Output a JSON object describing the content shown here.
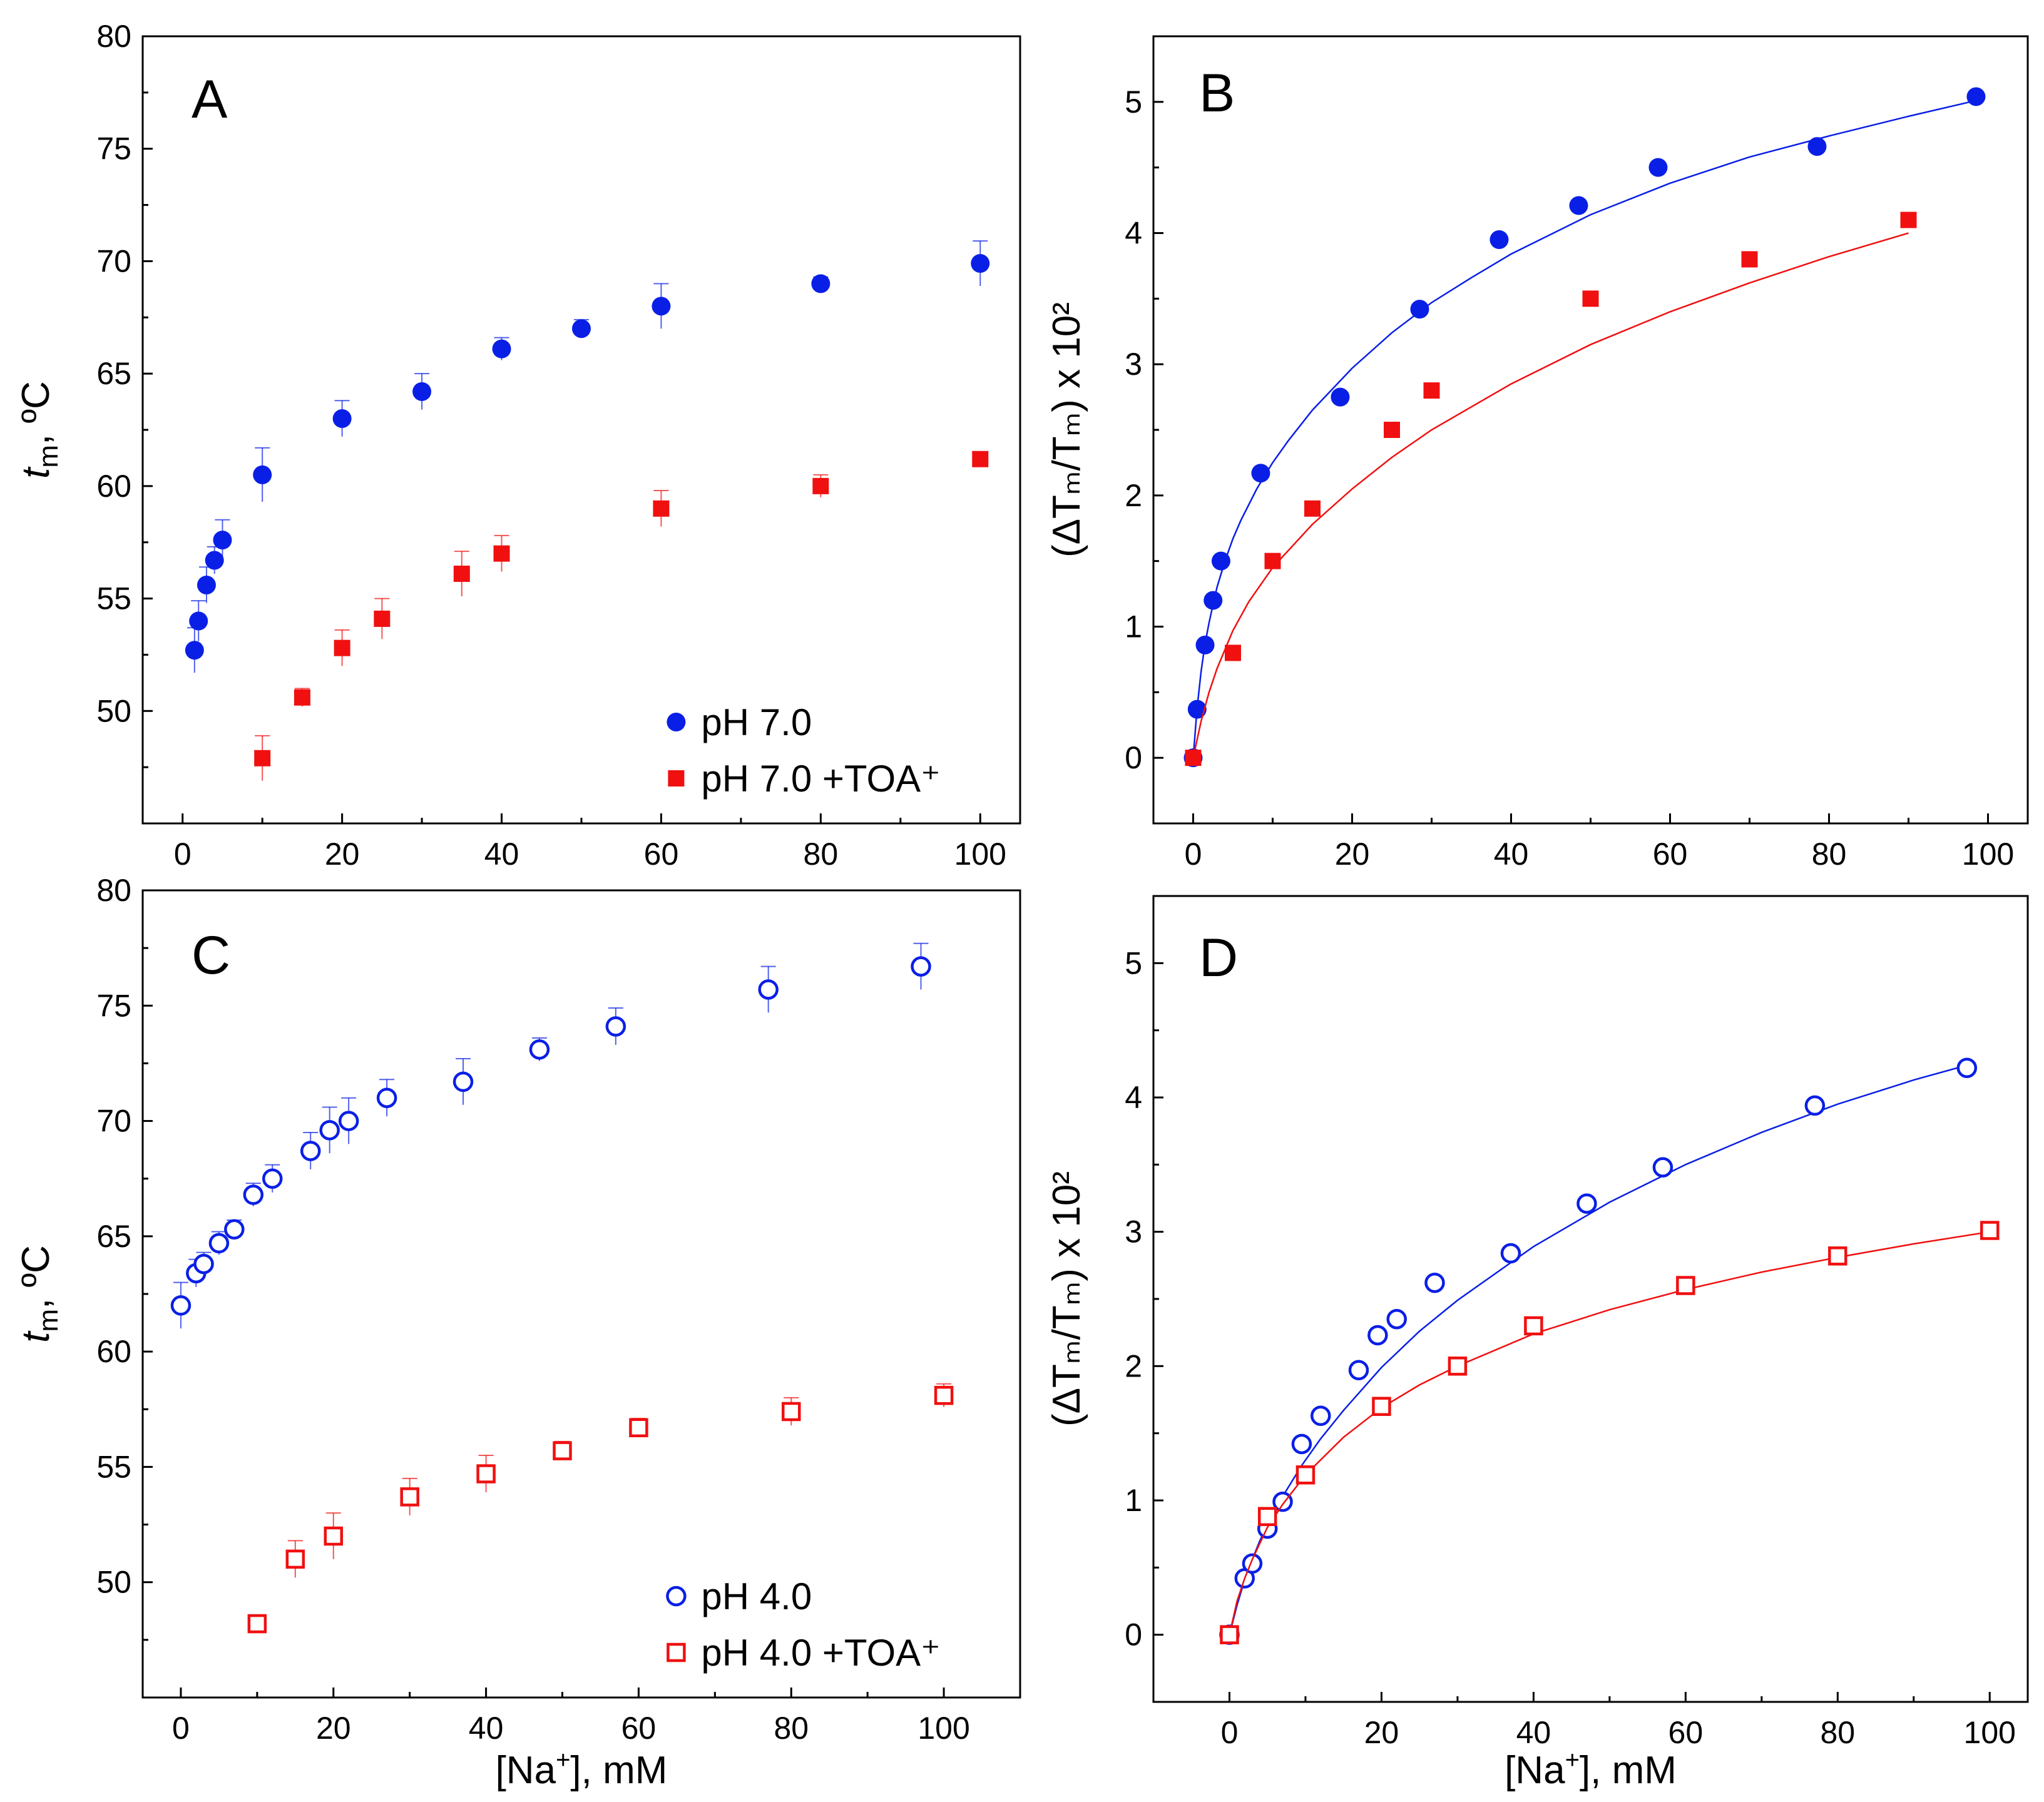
{
  "chart_data": [
    {
      "panel": "A",
      "type": "scatter",
      "xlim": [
        -5,
        105
      ],
      "ylim": [
        45,
        80
      ],
      "xticks": [
        0,
        20,
        40,
        60,
        80,
        100
      ],
      "yticks": [
        50,
        55,
        60,
        65,
        70,
        75,
        80
      ],
      "xlabel": "",
      "ylabel_main": "t",
      "ylabel_sub": "m",
      "ylabel_rest": ", ºC",
      "legend": "bottom-right",
      "series": [
        {
          "name": "pH 7.0",
          "marker": "filled-circle",
          "color": "#0a1fe6",
          "x": [
            1.5,
            2,
            3,
            4,
            5,
            10,
            20,
            30,
            40,
            50,
            60,
            80,
            100
          ],
          "y": [
            52.7,
            54.0,
            55.6,
            56.7,
            57.6,
            60.5,
            63.0,
            64.2,
            66.1,
            67.0,
            68.0,
            69.0,
            69.9
          ],
          "err": [
            1.0,
            0.9,
            0.8,
            0.6,
            0.9,
            1.2,
            0.8,
            0.8,
            0.5,
            0.4,
            1.0,
            0.3,
            1.0
          ]
        },
        {
          "name": "pH 7.0 +TOA⁺",
          "marker": "filled-square",
          "color": "#f01010",
          "x": [
            10,
            15,
            20,
            25,
            35,
            40,
            60,
            80,
            100
          ],
          "y": [
            47.9,
            50.6,
            52.8,
            54.1,
            56.1,
            57.0,
            59.0,
            60.0,
            61.2
          ],
          "err": [
            1.0,
            0.4,
            0.8,
            0.9,
            1.0,
            0.8,
            0.8,
            0.5,
            0.3
          ]
        }
      ]
    },
    {
      "panel": "B",
      "type": "scatter",
      "xlim": [
        -5,
        105
      ],
      "ylim": [
        -0.5,
        5.5
      ],
      "xticks": [
        0,
        20,
        40,
        60,
        80,
        100
      ],
      "yticks": [
        0,
        1,
        2,
        3,
        4,
        5
      ],
      "xlabel": "",
      "ylabel": "(ΔTₘ/Tₘ) x 10²",
      "series": [
        {
          "name": "pH 7.0",
          "marker": "filled-circle",
          "color": "#0a1fe6",
          "x": [
            0,
            0.5,
            1.5,
            2.5,
            3.5,
            8.5,
            18.5,
            28.5,
            38.5,
            48.5,
            58.5,
            78.5,
            98.5
          ],
          "y": [
            0.0,
            0.37,
            0.86,
            1.2,
            1.5,
            2.17,
            2.75,
            3.42,
            3.95,
            4.21,
            4.5,
            4.66,
            5.04
          ],
          "fit_x": [
            0,
            0.5,
            1,
            1.5,
            2,
            2.5,
            3,
            4,
            5,
            6,
            8,
            10,
            12,
            15,
            20,
            25,
            30,
            35,
            40,
            50,
            60,
            70,
            80,
            90,
            98.5
          ],
          "fit_y": [
            0,
            0.38,
            0.66,
            0.87,
            1.03,
            1.17,
            1.3,
            1.5,
            1.67,
            1.81,
            2.05,
            2.25,
            2.42,
            2.65,
            2.97,
            3.24,
            3.47,
            3.66,
            3.84,
            4.14,
            4.38,
            4.58,
            4.74,
            4.89,
            5.01
          ]
        },
        {
          "name": "pH 7.0 +TOA⁺",
          "marker": "filled-square",
          "color": "#f01010",
          "x": [
            0,
            5,
            10,
            15,
            25,
            30,
            50,
            70,
            90
          ],
          "y": [
            0.0,
            0.8,
            1.5,
            1.9,
            2.5,
            2.8,
            3.5,
            3.8,
            4.1
          ],
          "fit_x": [
            0,
            1,
            2,
            3,
            5,
            7,
            10,
            15,
            20,
            25,
            30,
            40,
            50,
            60,
            70,
            80,
            90
          ],
          "fit_y": [
            0,
            0.28,
            0.5,
            0.68,
            0.97,
            1.19,
            1.45,
            1.78,
            2.05,
            2.29,
            2.5,
            2.85,
            3.15,
            3.4,
            3.62,
            3.82,
            4.0
          ]
        }
      ]
    },
    {
      "panel": "C",
      "type": "scatter",
      "xlim": [
        -5,
        110
      ],
      "ylim": [
        45,
        80
      ],
      "xticks": [
        0,
        20,
        40,
        60,
        80,
        100
      ],
      "yticks": [
        50,
        55,
        60,
        65,
        70,
        75,
        80
      ],
      "xlabel_pre": "[Na",
      "xlabel_sup": "+",
      "xlabel_post": "], mM",
      "ylabel_main": "t",
      "ylabel_sub": "m",
      "ylabel_rest": ", ºC",
      "legend": "bottom-right",
      "series": [
        {
          "name": "pH 4.0",
          "marker": "open-circle",
          "color": "#0a1fe6",
          "x": [
            0,
            2,
            3,
            5,
            7,
            9.5,
            12,
            17,
            19.5,
            22,
            27,
            37,
            47,
            57,
            77,
            97
          ],
          "y": [
            62.0,
            63.4,
            63.8,
            64.7,
            65.3,
            66.8,
            67.5,
            68.7,
            69.6,
            70.0,
            71.0,
            71.7,
            73.1,
            74.1,
            75.7,
            76.7
          ],
          "err": [
            1.0,
            0.6,
            0.5,
            0.5,
            0.4,
            0.5,
            0.6,
            0.8,
            1.0,
            1.0,
            0.8,
            1.0,
            0.5,
            0.8,
            1.0,
            1.0
          ]
        },
        {
          "name": "pH 4.0 +TOA⁺",
          "marker": "open-square",
          "color": "#f01010",
          "x": [
            10,
            15,
            20,
            30,
            40,
            50,
            60,
            80,
            100
          ],
          "y": [
            48.2,
            51.0,
            52.0,
            53.7,
            54.7,
            55.7,
            56.7,
            57.4,
            58.1
          ],
          "err": [
            0.3,
            0.8,
            1.0,
            0.8,
            0.8,
            0.4,
            0.4,
            0.6,
            0.5
          ]
        }
      ]
    },
    {
      "panel": "D",
      "type": "scatter",
      "xlim": [
        -10,
        105
      ],
      "ylim": [
        -0.5,
        5.5
      ],
      "xticks": [
        0,
        20,
        40,
        60,
        80,
        100
      ],
      "yticks": [
        0,
        1,
        2,
        3,
        4,
        5
      ],
      "xlabel_pre": "[Na",
      "xlabel_sup": "+",
      "xlabel_post": "], mM",
      "ylabel": "(ΔTₘ/Tₘ) x 10²",
      "series": [
        {
          "name": "pH 4.0",
          "marker": "open-circle",
          "color": "#0a1fe6",
          "x": [
            0,
            2,
            3,
            5,
            7,
            9.5,
            12,
            17,
            19.5,
            22,
            27,
            37,
            47,
            57,
            77,
            97
          ],
          "y": [
            0.0,
            0.42,
            0.53,
            0.79,
            0.99,
            1.42,
            1.63,
            1.97,
            2.23,
            2.35,
            2.62,
            2.84,
            3.21,
            3.48,
            3.94,
            4.22
          ],
          "fit_x": [
            0,
            1,
            2,
            3,
            4,
            5,
            7,
            9.5,
            12,
            15,
            20,
            25,
            30,
            40,
            50,
            60,
            70,
            80,
            90,
            97
          ],
          "fit_y": [
            0,
            0.22,
            0.41,
            0.56,
            0.7,
            0.82,
            1.03,
            1.26,
            1.46,
            1.67,
            1.99,
            2.26,
            2.49,
            2.89,
            3.22,
            3.5,
            3.74,
            3.95,
            4.13,
            4.24
          ]
        },
        {
          "name": "pH 4.0 +TOA⁺",
          "marker": "open-square",
          "color": "#f01010",
          "x": [
            0,
            5,
            10,
            20,
            30,
            40,
            60,
            80,
            100
          ],
          "y": [
            0.0,
            0.88,
            1.19,
            1.7,
            2.0,
            2.3,
            2.6,
            2.82,
            3.01
          ],
          "fit_x": [
            0,
            1,
            2,
            3,
            5,
            7,
            10,
            15,
            20,
            25,
            30,
            40,
            50,
            60,
            70,
            80,
            90,
            100
          ],
          "fit_y": [
            0,
            0.25,
            0.42,
            0.56,
            0.8,
            0.97,
            1.19,
            1.47,
            1.69,
            1.86,
            2.0,
            2.24,
            2.42,
            2.57,
            2.7,
            2.81,
            2.91,
            3.0
          ]
        }
      ]
    }
  ]
}
